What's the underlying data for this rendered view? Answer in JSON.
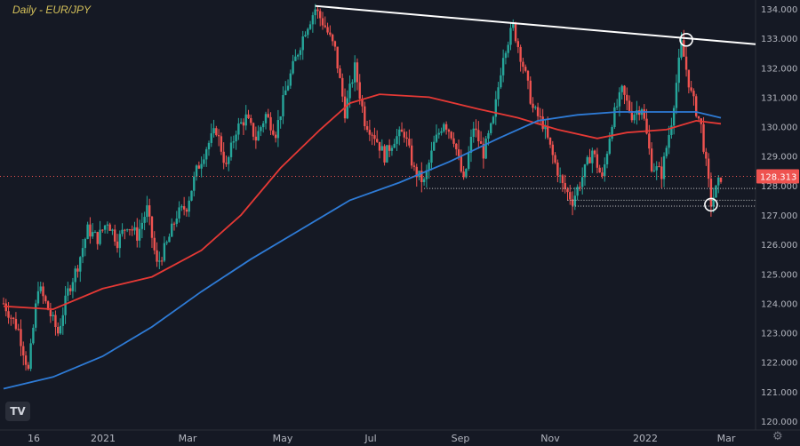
{
  "header": {
    "title": "Daily - EUR/JPY"
  },
  "logo": {
    "text": "TV"
  },
  "settings_icon": "gear-icon",
  "colors": {
    "background": "#151924",
    "up": "#26a69a",
    "down": "#ef5350",
    "ma_red": "#e53935",
    "ma_blue": "#2e7bd6",
    "trendline": "#ffffff",
    "price_line": "#ef5350",
    "price_label_bg": "#ef5350",
    "axis_text": "#b2b5be"
  },
  "chart_data": {
    "type": "candlestick",
    "title": "Daily - EUR/JPY",
    "ylim": [
      120,
      134
    ],
    "y_ticks": [
      "134.000",
      "133.000",
      "132.000",
      "131.000",
      "130.000",
      "129.000",
      "128.000",
      "127.000",
      "126.000",
      "125.000",
      "124.000",
      "123.000",
      "122.000",
      "121.000",
      "120.000"
    ],
    "x_ticks": [
      "16",
      "2021",
      "Mar",
      "May",
      "Jul",
      "Sep",
      "Nov",
      "2022",
      "Mar"
    ],
    "last_price": "128.313",
    "price_path": [
      {
        "t": 0,
        "p": 124.0
      },
      {
        "t": 3,
        "p": 123.1
      },
      {
        "t": 5,
        "p": 121.7
      },
      {
        "t": 7,
        "p": 124.6
      },
      {
        "t": 9,
        "p": 123.8
      },
      {
        "t": 11,
        "p": 123.0
      },
      {
        "t": 13,
        "p": 124.4
      },
      {
        "t": 15,
        "p": 125.3
      },
      {
        "t": 17,
        "p": 126.5
      },
      {
        "t": 19,
        "p": 126.2
      },
      {
        "t": 21,
        "p": 126.8
      },
      {
        "t": 23,
        "p": 126.1
      },
      {
        "t": 25,
        "p": 126.7
      },
      {
        "t": 27,
        "p": 126.3
      },
      {
        "t": 29,
        "p": 127.2
      },
      {
        "t": 31,
        "p": 125.3
      },
      {
        "t": 33,
        "p": 126.0
      },
      {
        "t": 35,
        "p": 127.0
      },
      {
        "t": 37,
        "p": 127.3
      },
      {
        "t": 39,
        "p": 128.5
      },
      {
        "t": 41,
        "p": 129.3
      },
      {
        "t": 43,
        "p": 129.9
      },
      {
        "t": 45,
        "p": 128.6
      },
      {
        "t": 47,
        "p": 129.9
      },
      {
        "t": 49,
        "p": 130.3
      },
      {
        "t": 51,
        "p": 129.6
      },
      {
        "t": 53,
        "p": 130.4
      },
      {
        "t": 55,
        "p": 129.8
      },
      {
        "t": 57,
        "p": 131.2
      },
      {
        "t": 59,
        "p": 132.3
      },
      {
        "t": 61,
        "p": 133.3
      },
      {
        "t": 63,
        "p": 134.0
      },
      {
        "t": 65,
        "p": 133.4
      },
      {
        "t": 67,
        "p": 132.6
      },
      {
        "t": 69,
        "p": 130.5
      },
      {
        "t": 71,
        "p": 132.0
      },
      {
        "t": 73,
        "p": 130.2
      },
      {
        "t": 75,
        "p": 129.7
      },
      {
        "t": 77,
        "p": 129.0
      },
      {
        "t": 79,
        "p": 129.6
      },
      {
        "t": 81,
        "p": 129.8
      },
      {
        "t": 83,
        "p": 128.5
      },
      {
        "t": 85,
        "p": 128.1
      },
      {
        "t": 87,
        "p": 129.4
      },
      {
        "t": 89,
        "p": 130.2
      },
      {
        "t": 91,
        "p": 129.6
      },
      {
        "t": 93,
        "p": 128.1
      },
      {
        "t": 95,
        "p": 130.0
      },
      {
        "t": 97,
        "p": 129.1
      },
      {
        "t": 99,
        "p": 130.2
      },
      {
        "t": 101,
        "p": 132.5
      },
      {
        "t": 103,
        "p": 133.4
      },
      {
        "t": 105,
        "p": 132.1
      },
      {
        "t": 107,
        "p": 130.6
      },
      {
        "t": 109,
        "p": 130.1
      },
      {
        "t": 111,
        "p": 129.0
      },
      {
        "t": 113,
        "p": 128.0
      },
      {
        "t": 115,
        "p": 127.5
      },
      {
        "t": 117,
        "p": 128.3
      },
      {
        "t": 119,
        "p": 129.2
      },
      {
        "t": 121,
        "p": 128.2
      },
      {
        "t": 123,
        "p": 130.2
      },
      {
        "t": 125,
        "p": 131.2
      },
      {
        "t": 127,
        "p": 130.4
      },
      {
        "t": 129,
        "p": 130.7
      },
      {
        "t": 131,
        "p": 128.7
      },
      {
        "t": 133,
        "p": 128.4
      },
      {
        "t": 135,
        "p": 130.2
      },
      {
        "t": 137,
        "p": 132.8
      },
      {
        "t": 139,
        "p": 131.1
      },
      {
        "t": 141,
        "p": 130.0
      },
      {
        "t": 143,
        "p": 127.4
      },
      {
        "t": 145,
        "p": 128.3
      }
    ],
    "moving_averages": [
      {
        "color": "#e53935",
        "points": [
          {
            "t": 0,
            "p": 123.9
          },
          {
            "t": 10,
            "p": 123.8
          },
          {
            "t": 20,
            "p": 124.5
          },
          {
            "t": 30,
            "p": 124.9
          },
          {
            "t": 40,
            "p": 125.8
          },
          {
            "t": 48,
            "p": 127.0
          },
          {
            "t": 56,
            "p": 128.6
          },
          {
            "t": 64,
            "p": 129.9
          },
          {
            "t": 70,
            "p": 130.8
          },
          {
            "t": 76,
            "p": 131.1
          },
          {
            "t": 86,
            "p": 131.0
          },
          {
            "t": 96,
            "p": 130.6
          },
          {
            "t": 104,
            "p": 130.3
          },
          {
            "t": 112,
            "p": 129.9
          },
          {
            "t": 120,
            "p": 129.6
          },
          {
            "t": 126,
            "p": 129.8
          },
          {
            "t": 134,
            "p": 129.9
          },
          {
            "t": 140,
            "p": 130.2
          },
          {
            "t": 145,
            "p": 130.1
          }
        ]
      },
      {
        "color": "#2e7bd6",
        "points": [
          {
            "t": 0,
            "p": 121.1
          },
          {
            "t": 10,
            "p": 121.5
          },
          {
            "t": 20,
            "p": 122.2
          },
          {
            "t": 30,
            "p": 123.2
          },
          {
            "t": 40,
            "p": 124.4
          },
          {
            "t": 50,
            "p": 125.5
          },
          {
            "t": 60,
            "p": 126.5
          },
          {
            "t": 70,
            "p": 127.5
          },
          {
            "t": 80,
            "p": 128.1
          },
          {
            "t": 90,
            "p": 128.8
          },
          {
            "t": 100,
            "p": 129.6
          },
          {
            "t": 108,
            "p": 130.2
          },
          {
            "t": 116,
            "p": 130.4
          },
          {
            "t": 124,
            "p": 130.5
          },
          {
            "t": 132,
            "p": 130.5
          },
          {
            "t": 140,
            "p": 130.5
          },
          {
            "t": 145,
            "p": 130.3
          }
        ]
      }
    ],
    "trendline": [
      {
        "t": 63,
        "p": 134.1
      },
      {
        "t": 152,
        "p": 132.8
      }
    ],
    "support_lines": [
      {
        "t_start": 85,
        "t_end": 152,
        "p": 127.9
      },
      {
        "t_start": 114,
        "t_end": 152,
        "p": 127.5
      },
      {
        "t_start": 115,
        "t_end": 152,
        "p": 127.3
      }
    ],
    "circles": [
      {
        "t": 138,
        "p": 132.95
      },
      {
        "t": 143,
        "p": 127.35
      }
    ]
  }
}
